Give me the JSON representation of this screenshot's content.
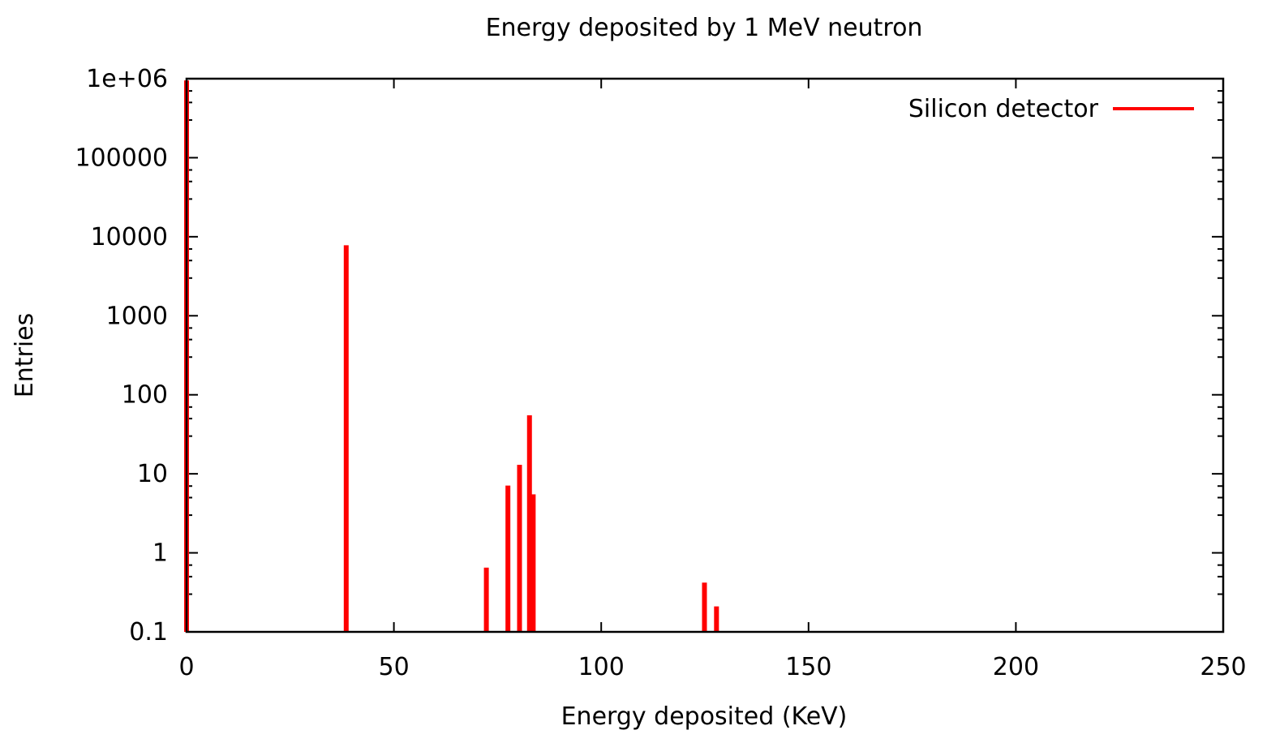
{
  "chart_data": {
    "type": "bar",
    "title": "Energy deposited by 1 MeV neutron",
    "xlabel": "Energy deposited (KeV)",
    "ylabel": "Entries",
    "xlim": [
      0,
      250
    ],
    "ylim": [
      0.1,
      1000000
    ],
    "yscale": "log",
    "grid": false,
    "legend_position": "top-right",
    "xticks": [
      "0",
      "50",
      "100",
      "150",
      "200",
      "250"
    ],
    "yticks": [
      "0.1",
      "1",
      "10",
      "100",
      "1000",
      "10000",
      "100000",
      "1e+06"
    ],
    "series": [
      {
        "name": "Silicon detector",
        "color": "#ff0000",
        "points": [
          {
            "x": 0,
            "y": 950000
          },
          {
            "x": 38.5,
            "y": 7800
          },
          {
            "x": 72.3,
            "y": 0.65
          },
          {
            "x": 77.5,
            "y": 7.1
          },
          {
            "x": 80.3,
            "y": 13
          },
          {
            "x": 82.7,
            "y": 55
          },
          {
            "x": 83.6,
            "y": 5.5
          },
          {
            "x": 124.9,
            "y": 0.42
          },
          {
            "x": 127.8,
            "y": 0.21
          }
        ]
      }
    ]
  }
}
